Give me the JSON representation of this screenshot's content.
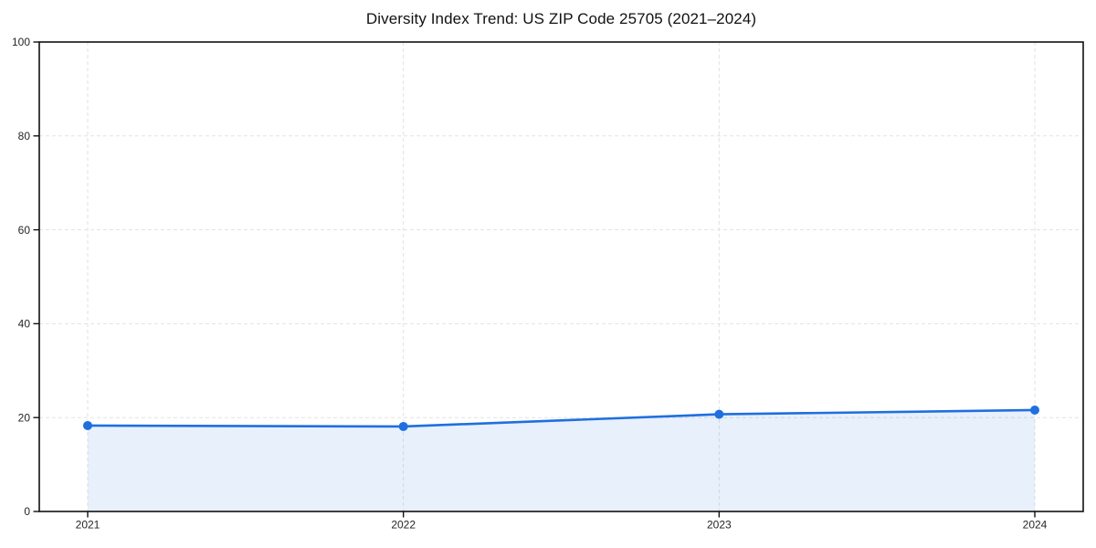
{
  "chart_data": {
    "type": "area",
    "title": "Diversity Index Trend: US ZIP Code 25705 (2021–2024)",
    "x": [
      "2021",
      "2022",
      "2023",
      "2024"
    ],
    "series": [
      {
        "name": "Diversity Index",
        "values": [
          18.3,
          18.1,
          20.7,
          21.6
        ]
      }
    ],
    "xlabel": "",
    "ylabel": "",
    "ylim": [
      0,
      100
    ],
    "yticks": [
      0,
      20,
      40,
      60,
      80,
      100
    ],
    "grid": "dashed",
    "legend": "none",
    "marker": "circle",
    "colors": {
      "line": "#1f6fe0",
      "marker": "#1f6fe0",
      "fill": "rgba(31,111,224,0.10)",
      "grid": "#e2e2e2",
      "axis": "#111111",
      "tick_label": "#262626",
      "title": "#111111",
      "background": "#ffffff"
    }
  }
}
